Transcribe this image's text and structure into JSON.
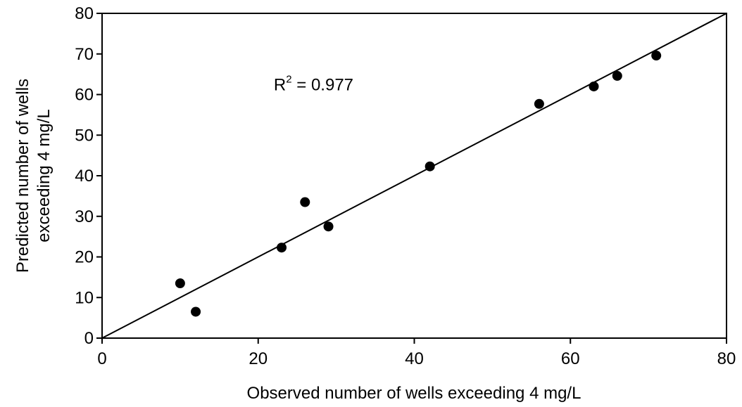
{
  "chart_data": {
    "type": "scatter",
    "xlabel": "Observed number of wells exceeding 4 mg/L",
    "ylabel_lines": [
      "Predicted number of wells",
      "exceeding 4 mg/L"
    ],
    "xlim": [
      0,
      80
    ],
    "ylim": [
      0,
      80
    ],
    "x_ticks": [
      0,
      20,
      40,
      60,
      80
    ],
    "y_ticks": [
      0,
      10,
      20,
      30,
      40,
      50,
      60,
      70,
      80
    ],
    "grid": false,
    "series": [
      {
        "x": [
          10,
          12,
          23,
          26,
          29,
          42,
          56,
          63,
          66,
          71
        ],
        "y": [
          13.5,
          6.5,
          22.3,
          33.5,
          27.5,
          42.3,
          57.7,
          62.0,
          64.6,
          69.6
        ]
      }
    ],
    "fit_line": {
      "x": [
        0,
        80
      ],
      "y": [
        0,
        80
      ]
    },
    "annotation": {
      "base": "R",
      "superscript": "2",
      "rest": " = 0.977",
      "x": 22,
      "y": 61
    },
    "colors": {
      "marker": "#000000",
      "line": "#000000",
      "axes": "#000000"
    }
  }
}
